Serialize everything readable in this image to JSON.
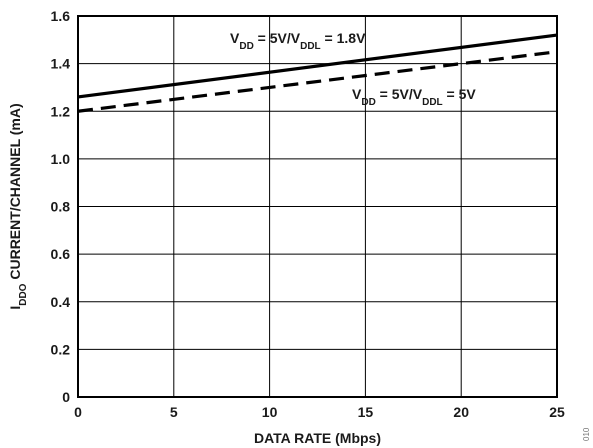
{
  "chart_data": {
    "type": "line",
    "title": "",
    "xlabel": "DATA RATE (Mbps)",
    "ylabel": {
      "main": "I",
      "sub": "DDO",
      "rest": " CURRENT/CHANNEL (mA)"
    },
    "xlim": [
      0,
      25
    ],
    "ylim": [
      0,
      1.6
    ],
    "xticks": [
      "0",
      "5",
      "10",
      "15",
      "20",
      "25"
    ],
    "yticks": [
      "0",
      "0.2",
      "0.4",
      "0.6",
      "0.8",
      "1.0",
      "1.2",
      "1.4",
      "1.6"
    ],
    "grid": true,
    "series": [
      {
        "x": [
          0,
          25
        ],
        "values": [
          1.26,
          1.52
        ],
        "style": "solid",
        "label_parts": {
          "v1": "V",
          "s1": "DD",
          "m": " = 5V/V",
          "s2": "DDL",
          "end": " = 1.8V"
        }
      },
      {
        "x": [
          0,
          25
        ],
        "values": [
          1.2,
          1.45
        ],
        "style": "dashed",
        "label_parts": {
          "v1": "V",
          "s1": "DD",
          "m": " = 5V/V",
          "s2": "DDL",
          "end": " = 5V"
        }
      }
    ],
    "corner_text": "010"
  }
}
